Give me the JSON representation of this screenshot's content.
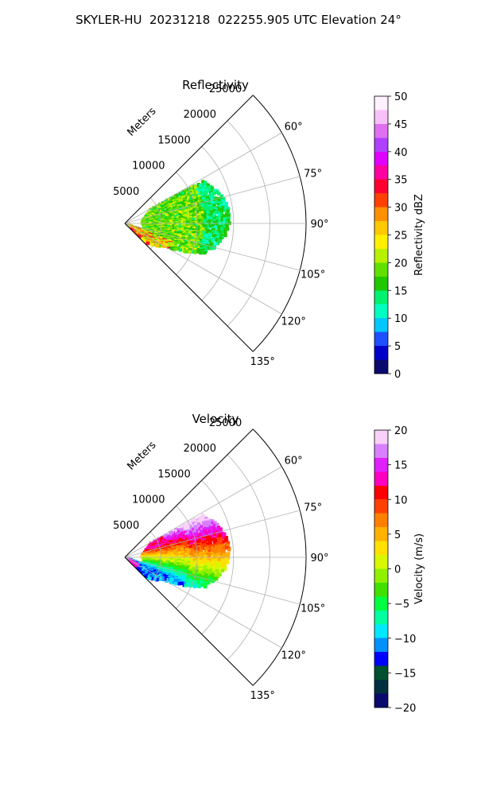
{
  "suptitle": "SKYLER-HU  20231218  022255.905 UTC Elevation 24°",
  "chart_data": [
    {
      "type": "heatmap",
      "subtype": "polar-sector (PPI radar scan)",
      "title": "Reflectivity",
      "radial_axis_label": "Meters",
      "radial_ticks": [
        "5000",
        "10000",
        "15000",
        "20000",
        "25000"
      ],
      "radial_tick_values": [
        5000,
        10000,
        15000,
        20000,
        25000
      ],
      "rlim": [
        0,
        25000
      ],
      "angle_ticks": [
        "60°",
        "75°",
        "90°",
        "105°",
        "120°",
        "135°"
      ],
      "angle_tick_values": [
        60,
        75,
        90,
        105,
        120,
        135
      ],
      "angle_range_deg": [
        45,
        135
      ],
      "grid": true,
      "colorbar": {
        "label": "Reflectivity dBZ",
        "range": [
          0,
          50
        ],
        "ticks": [
          "0",
          "5",
          "10",
          "15",
          "20",
          "25",
          "30",
          "35",
          "40",
          "45",
          "50"
        ],
        "colors": [
          "#0a0a6e",
          "#0000c8",
          "#1e50ff",
          "#00c8ff",
          "#00ffc0",
          "#00f070",
          "#20c800",
          "#60e000",
          "#b8f000",
          "#fff000",
          "#ffc800",
          "#ff9000",
          "#ff4000",
          "#ff0030",
          "#ff00a0",
          "#e000ff",
          "#b040ff",
          "#e070f0",
          "#f8c0f8",
          "#fff0ff"
        ]
      },
      "echo": {
        "extent_m": [
          1500,
          15000
        ],
        "azimuth_span_deg": [
          60,
          130
        ],
        "dominant_range_dbz": [
          12,
          25
        ],
        "peak_dbz": 35
      }
    },
    {
      "type": "heatmap",
      "subtype": "polar-sector (PPI radar scan)",
      "title": "Velocity",
      "radial_axis_label": "Meters",
      "radial_ticks": [
        "5000",
        "10000",
        "15000",
        "20000",
        "25000"
      ],
      "radial_tick_values": [
        5000,
        10000,
        15000,
        20000,
        25000
      ],
      "rlim": [
        0,
        25000
      ],
      "angle_ticks": [
        "60°",
        "75°",
        "90°",
        "105°",
        "120°",
        "135°"
      ],
      "angle_tick_values": [
        60,
        75,
        90,
        105,
        120,
        135
      ],
      "angle_range_deg": [
        45,
        135
      ],
      "grid": true,
      "colorbar": {
        "label": "Velocity (m/s)",
        "range": [
          -20,
          20
        ],
        "ticks": [
          "−20",
          "−15",
          "−10",
          "−5",
          "0",
          "5",
          "10",
          "15",
          "20"
        ],
        "colors": [
          "#0a0a6e",
          "#003040",
          "#005030",
          "#0000ff",
          "#0090ff",
          "#00e8ff",
          "#00ffa0",
          "#00ff40",
          "#40e000",
          "#90f000",
          "#d8f800",
          "#ffe000",
          "#ffb000",
          "#ff8000",
          "#ff4000",
          "#ff0000",
          "#ff00c0",
          "#e020ff",
          "#d880ff",
          "#f8d0f8"
        ]
      },
      "echo": {
        "extent_m": [
          1500,
          15000
        ],
        "azimuth_span_deg": [
          60,
          130
        ],
        "velocity_range_ms": [
          -15,
          15
        ]
      }
    }
  ]
}
